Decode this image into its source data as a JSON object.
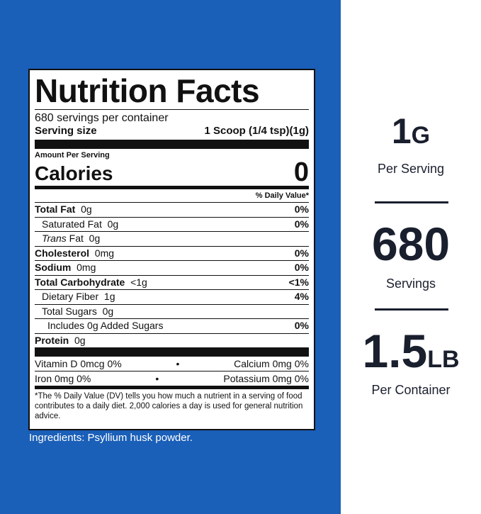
{
  "label": {
    "title": "Nutrition Facts",
    "servings_per_container": "680 servings per container",
    "serving_size_label": "Serving size",
    "serving_size_value": "1 Scoop (1/4 tsp)(1g)",
    "amount_per_serving": "Amount Per Serving",
    "calories_label": "Calories",
    "calories_value": "0",
    "dv_header": "% Daily Value*",
    "nutrients": [
      {
        "name": "Total Fat",
        "amount": "0g",
        "dv": "0%"
      },
      {
        "name": "Saturated Fat",
        "amount": "0g",
        "dv": "0%"
      },
      {
        "name": "Trans",
        "name2": "Fat",
        "amount": "0g",
        "dv": ""
      },
      {
        "name": "Cholesterol",
        "amount": "0mg",
        "dv": "0%"
      },
      {
        "name": "Sodium",
        "amount": "0mg",
        "dv": "0%"
      },
      {
        "name": "Total Carbohydrate",
        "amount": "<1g",
        "dv": "<1%"
      },
      {
        "name": "Dietary Fiber",
        "amount": "1g",
        "dv": "4%"
      },
      {
        "name": "Total Sugars",
        "amount": "0g",
        "dv": ""
      },
      {
        "name": "Includes 0g Added Sugars",
        "amount": "",
        "dv": "0%"
      },
      {
        "name": "Protein",
        "amount": "0g",
        "dv": ""
      }
    ],
    "vitamins": [
      {
        "left": "Vitamin D  0mcg  0%",
        "bullet": "•",
        "right": "Calcium  0mg  0%"
      },
      {
        "left": "Iron  0mg  0%",
        "bullet": "•",
        "right": "Potassium  0mg  0%"
      }
    ],
    "footnote": "*The % Daily Value (DV) tells you how much a nutrient in a serving of food contributes to a daily diet.  2,000 calories a day is used for general nutrition advice."
  },
  "ingredients": "Ingredients: Psyllium husk powder.",
  "stats": [
    {
      "big": "1",
      "unit": "G",
      "sub": "Per Serving"
    },
    {
      "big": "680",
      "unit": "",
      "sub": "Servings"
    },
    {
      "big": "1.5",
      "unit": "LB",
      "sub": "Per Container"
    }
  ],
  "colors": {
    "panel_blue": "#1a5fb8",
    "text_dark": "#1a1f2e"
  }
}
